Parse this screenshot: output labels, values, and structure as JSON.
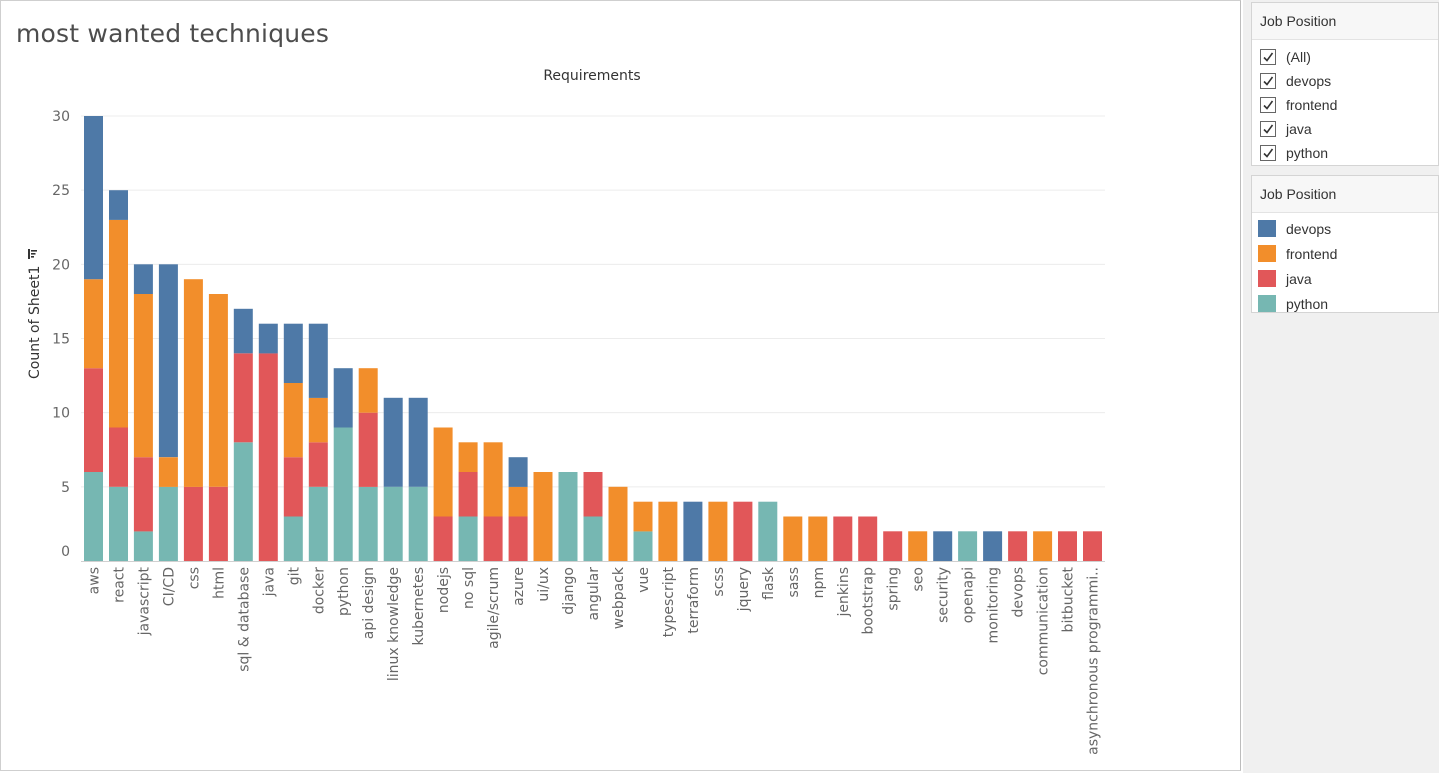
{
  "worksheet": {
    "title": "most wanted techniques"
  },
  "filter_card": {
    "title": "Job Position",
    "options": [
      {
        "label": "(All)",
        "checked": true
      },
      {
        "label": "devops",
        "checked": true
      },
      {
        "label": "frontend",
        "checked": true
      },
      {
        "label": "java",
        "checked": true
      },
      {
        "label": "python",
        "checked": true
      }
    ]
  },
  "legend_card": {
    "title": "Job Position",
    "items": [
      {
        "label": "devops",
        "color": "#4e79a7"
      },
      {
        "label": "frontend",
        "color": "#f28e2b"
      },
      {
        "label": "java",
        "color": "#e15759"
      },
      {
        "label": "python",
        "color": "#76b7b2"
      }
    ]
  },
  "chart_data": {
    "type": "bar",
    "stacked": true,
    "title": "Requirements",
    "xlabel": "",
    "ylabel": "Count of Sheet1",
    "ylim": [
      0,
      30
    ],
    "yticks": [
      0,
      5,
      10,
      15,
      20,
      25,
      30
    ],
    "grid": true,
    "legend": "right",
    "categories": [
      "aws",
      "react",
      "javascript",
      "CI/CD",
      "css",
      "html",
      "sql & database",
      "java",
      "git",
      "docker",
      "python",
      "api design",
      "linux knowledge",
      "kubernetes",
      "nodejs",
      "no sql",
      "agile/scrum",
      "azure",
      "ui/ux",
      "django",
      "angular",
      "webpack",
      "vue",
      "typescript",
      "terraform",
      "scss",
      "jquery",
      "flask",
      "sass",
      "npm",
      "jenkins",
      "bootstrap",
      "spring",
      "seo",
      "security",
      "openapi",
      "monitoring",
      "devops",
      "communication",
      "bitbucket",
      "asynchronous programmi.."
    ],
    "series": [
      {
        "name": "python",
        "color": "#76b7b2",
        "values": [
          6,
          5,
          2,
          5,
          0,
          0,
          8,
          0,
          3,
          5,
          9,
          5,
          5,
          5,
          0,
          3,
          0,
          0,
          0,
          6,
          3,
          0,
          2,
          0,
          0,
          0,
          0,
          4,
          0,
          0,
          0,
          0,
          0,
          0,
          0,
          2,
          0,
          0,
          0,
          0,
          0
        ]
      },
      {
        "name": "java",
        "color": "#e15759",
        "values": [
          7,
          4,
          5,
          0,
          5,
          5,
          6,
          14,
          4,
          3,
          0,
          5,
          0,
          0,
          3,
          3,
          3,
          3,
          0,
          0,
          3,
          0,
          0,
          0,
          0,
          0,
          4,
          0,
          0,
          0,
          3,
          3,
          2,
          0,
          0,
          0,
          0,
          2,
          0,
          2,
          2
        ]
      },
      {
        "name": "frontend",
        "color": "#f28e2b",
        "values": [
          6,
          14,
          11,
          2,
          14,
          13,
          0,
          0,
          5,
          3,
          0,
          3,
          0,
          0,
          6,
          2,
          5,
          2,
          6,
          0,
          0,
          5,
          2,
          4,
          0,
          4,
          0,
          0,
          3,
          3,
          0,
          0,
          0,
          2,
          0,
          0,
          0,
          0,
          2,
          0,
          0
        ]
      },
      {
        "name": "devops",
        "color": "#4e79a7",
        "values": [
          11,
          2,
          2,
          13,
          0,
          0,
          3,
          2,
          4,
          5,
          4,
          0,
          6,
          6,
          0,
          0,
          0,
          2,
          0,
          0,
          0,
          0,
          0,
          0,
          4,
          0,
          0,
          0,
          0,
          0,
          0,
          0,
          0,
          0,
          2,
          0,
          2,
          0,
          0,
          0,
          0
        ]
      }
    ]
  }
}
